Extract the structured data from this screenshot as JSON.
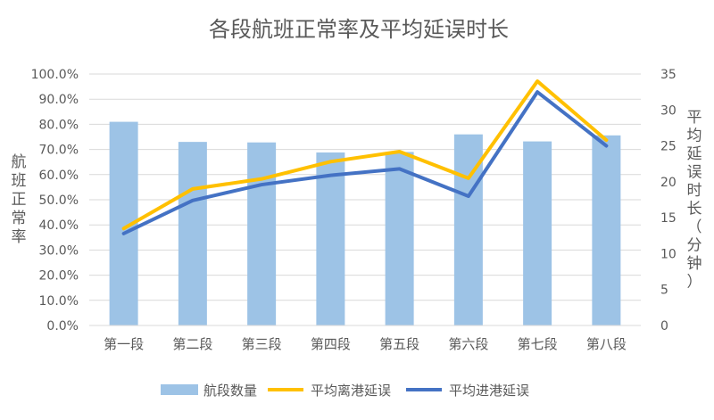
{
  "chart_data": {
    "type": "bar",
    "title": "各段航班正常率及平均延误时长",
    "categories": [
      "第一段",
      "第二段",
      "第三段",
      "第四段",
      "第五段",
      "第六段",
      "第七段",
      "第八段"
    ],
    "ylabel": "航班正常率",
    "y2label": "平均延误时长（分钟）",
    "ylim": [
      0,
      100
    ],
    "y2lim": [
      0,
      35
    ],
    "yticks": [
      "0.0%",
      "10.0%",
      "20.0%",
      "30.0%",
      "40.0%",
      "50.0%",
      "60.0%",
      "70.0%",
      "80.0%",
      "90.0%",
      "100.0%"
    ],
    "y2ticks": [
      "0",
      "5",
      "10",
      "15",
      "20",
      "25",
      "30",
      "35"
    ],
    "grid": true,
    "legend_position": "bottom",
    "series": [
      {
        "name": "航段数量",
        "type": "bar",
        "axis": "left",
        "color": "#9DC3E6",
        "values": [
          81.0,
          73.0,
          72.8,
          68.8,
          69.0,
          76.0,
          73.2,
          75.6
        ]
      },
      {
        "name": "平均离港延误",
        "type": "line",
        "axis": "right",
        "color": "#FFC000",
        "values": [
          13.5,
          19.0,
          20.4,
          22.8,
          24.2,
          20.5,
          34.0,
          25.8
        ]
      },
      {
        "name": "平均进港延误",
        "type": "line",
        "axis": "right",
        "color": "#4472C4",
        "values": [
          12.8,
          17.4,
          19.6,
          20.9,
          21.8,
          18.0,
          32.5,
          25.0
        ]
      }
    ]
  }
}
